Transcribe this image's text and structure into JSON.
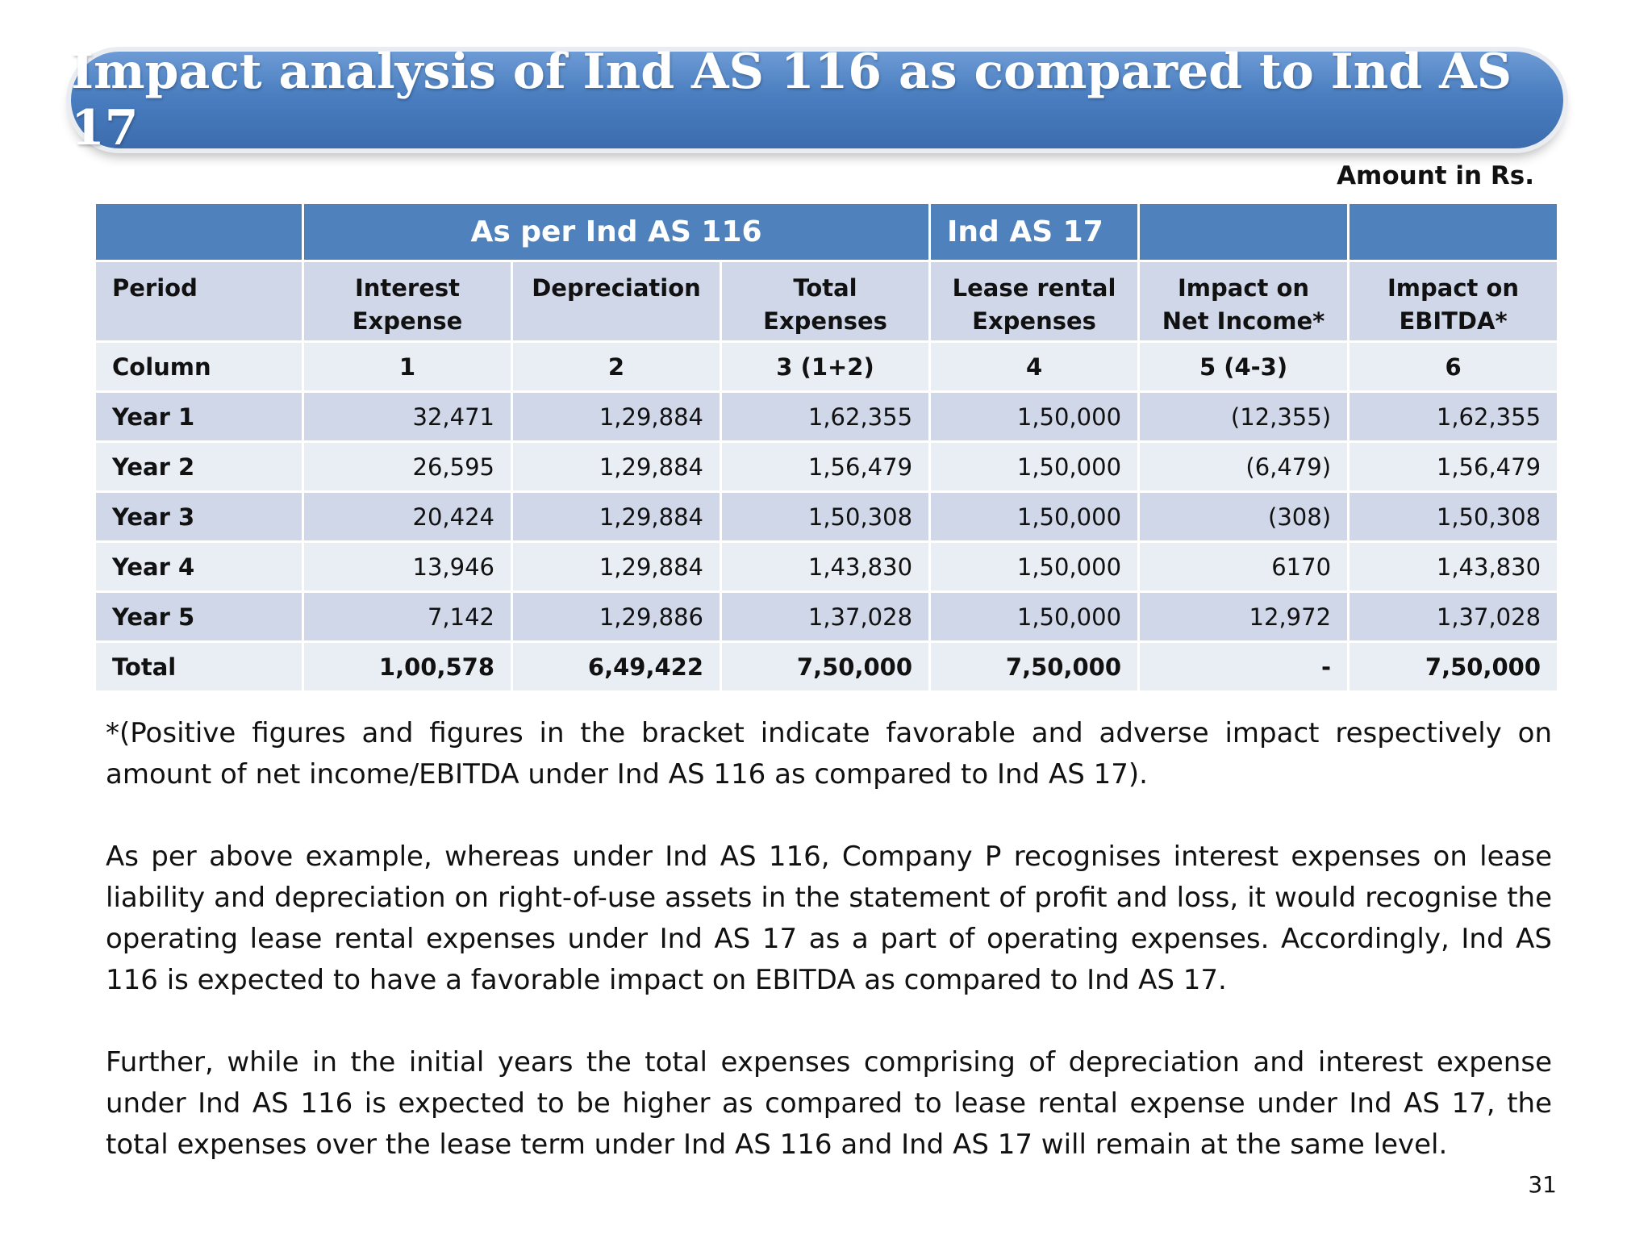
{
  "title": "Impact analysis of Ind AS 116 as compared to Ind AS 17",
  "amount_note": "Amount in Rs.",
  "table": {
    "group_header": [
      "",
      "As per Ind AS 116",
      "Ind AS 17",
      "",
      ""
    ],
    "column_headers": [
      "Period",
      "Interest Expense",
      "Depreciation",
      "Total Expenses",
      "Lease rental Expenses",
      "Impact on Net Income*",
      "Impact on EBITDA*"
    ],
    "column_numbers": [
      "Column",
      "1",
      "2",
      "3 (1+2)",
      "4",
      "5 (4-3)",
      "6"
    ],
    "rows": [
      [
        "Year 1",
        "32,471",
        "1,29,884",
        "1,62,355",
        "1,50,000",
        "(12,355)",
        "1,62,355"
      ],
      [
        "Year 2",
        "26,595",
        "1,29,884",
        "1,56,479",
        "1,50,000",
        "(6,479)",
        "1,56,479"
      ],
      [
        "Year 3",
        "20,424",
        "1,29,884",
        "1,50,308",
        "1,50,000",
        "(308)",
        "1,50,308"
      ],
      [
        "Year 4",
        "13,946",
        "1,29,884",
        "1,43,830",
        "1,50,000",
        "6170",
        "1,43,830"
      ],
      [
        "Year 5",
        "7,142",
        "1,29,886",
        "1,37,028",
        "1,50,000",
        "12,972",
        "1,37,028"
      ],
      [
        "Total",
        "1,00,578",
        "6,49,422",
        "7,50,000",
        "7,50,000",
        "-",
        "7,50,000"
      ]
    ]
  },
  "paragraphs": [
    "*(Positive figures and figures in the bracket indicate favorable and adverse impact respectively on amount of net income/EBITDA under Ind AS 116 as compared to Ind AS 17).",
    "As per above example, whereas under Ind AS 116, Company P recognises interest expenses on lease liability and depreciation on right-of-use assets in the statement of profit and loss, it would recognise the operating lease rental expenses under Ind AS 17 as a part of operating expenses. Accordingly, Ind AS 116 is expected to have a favorable impact on EBITDA as compared to Ind AS 17.",
    "Further, while in the initial years the total expenses comprising of depreciation and interest expense under Ind AS 116 is expected to be higher as compared to lease rental expense under Ind AS 17, the total expenses over the lease term under Ind AS 116 and Ind AS 17 will remain at the same level."
  ],
  "page_number": "31"
}
